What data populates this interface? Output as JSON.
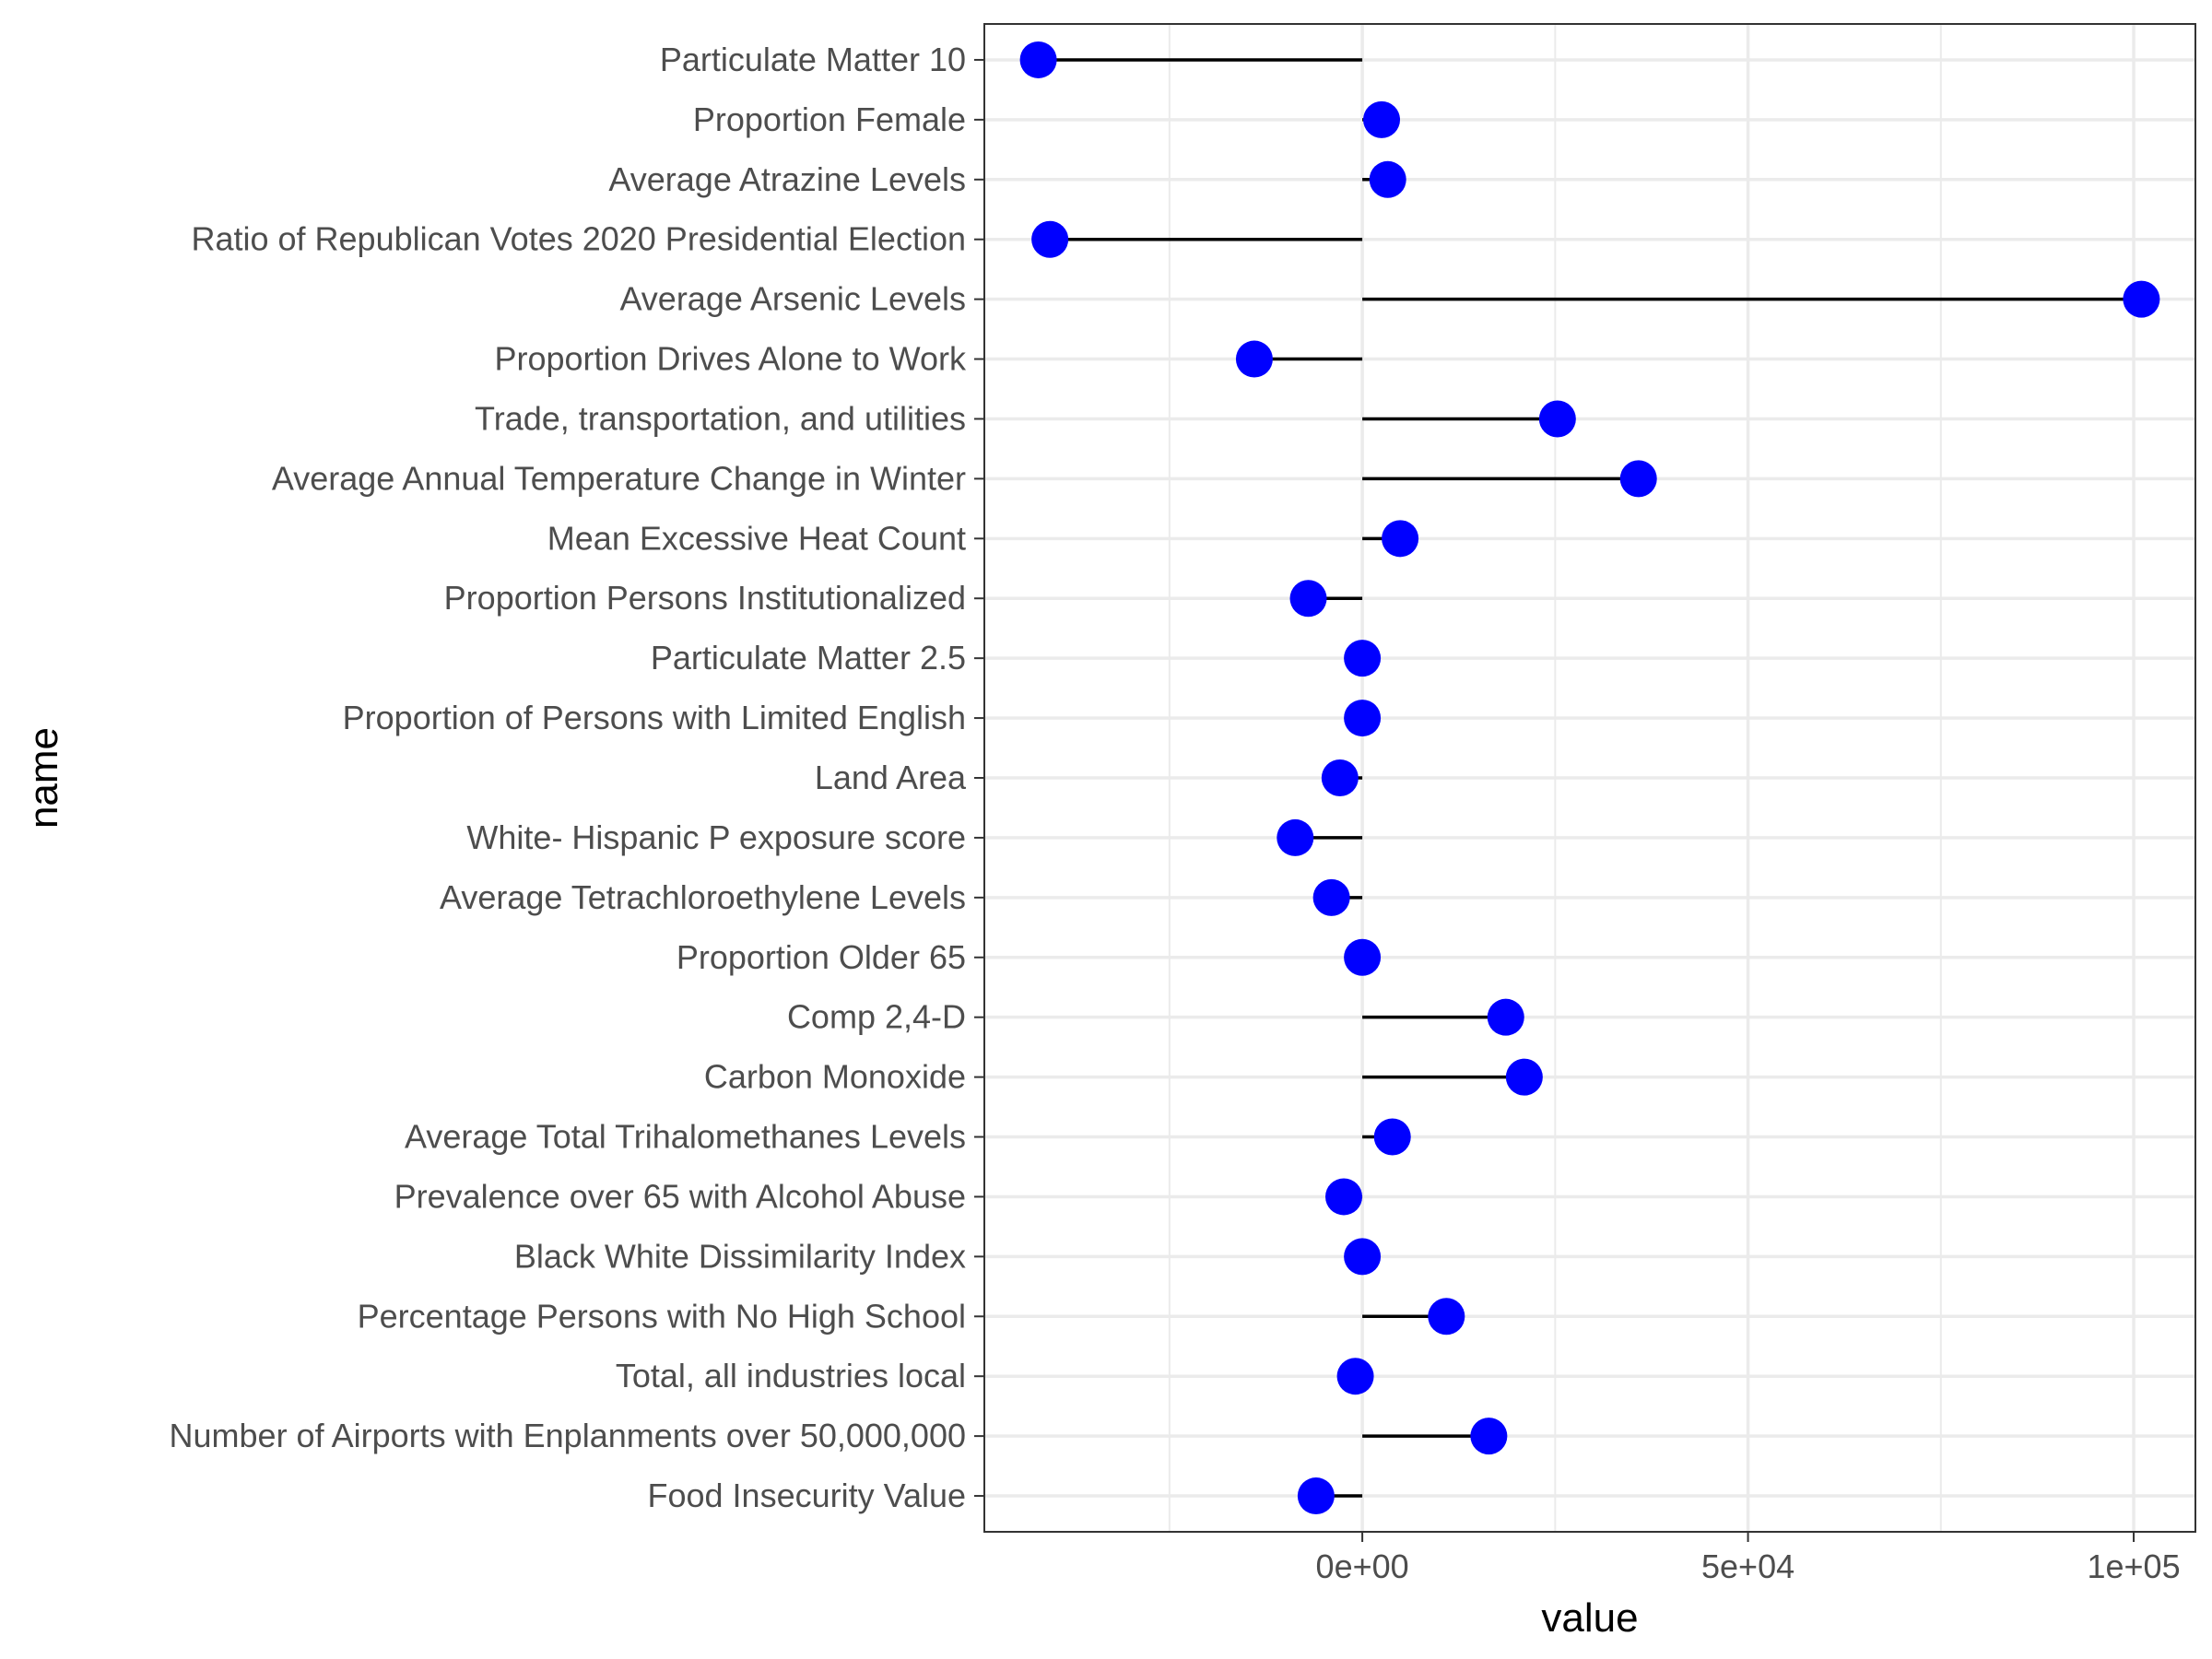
{
  "chart_data": {
    "type": "lollipop",
    "xlabel": "value",
    "ylabel": "name",
    "xlim": [
      -49000,
      108000
    ],
    "x_ticks": [
      {
        "value": 0,
        "label": "0e+00"
      },
      {
        "value": 50000,
        "label": "5e+04"
      },
      {
        "value": 100000,
        "label": "1e+05"
      }
    ],
    "x_minor_ticks": [
      -25000,
      25000,
      75000
    ],
    "grid": true,
    "baseline": 0,
    "categories": [
      "Particulate Matter 10",
      "Proportion Female",
      "Average Atrazine Levels",
      "Ratio of Republican Votes 2020 Presidential Election",
      "Average Arsenic Levels",
      "Proportion Drives Alone to Work",
      "Trade, transportation, and utilities",
      "Average Annual Temperature Change in Winter",
      "Mean Excessive Heat Count",
      "Proportion Persons Institutionalized",
      "Particulate Matter 2.5",
      "Proportion of Persons with Limited English",
      "Land Area",
      "White- Hispanic P exposure score",
      "Average Tetrachloroethylene Levels",
      "Proportion Older 65",
      "Comp 2,4-D",
      "Carbon Monoxide",
      "Average Total Trihalomethanes Levels",
      "Prevalence over 65 with Alcohol Abuse",
      "Black White Dissimilarity Index",
      "Percentage Persons with No High School",
      "Total, all industries local",
      "Number of Airports with Enplanments over 50,000,000",
      "Food Insecurity Value"
    ],
    "values": [
      -42000,
      2500,
      3300,
      -40500,
      101000,
      -14000,
      25300,
      35800,
      4900,
      -7000,
      0,
      0,
      -2900,
      -8700,
      -4000,
      0,
      18600,
      21000,
      3900,
      -2400,
      0,
      10900,
      -900,
      16400,
      -6000
    ],
    "colors": {
      "point": "#0000ff",
      "segment": "#000000",
      "grid": "#ebebeb",
      "panel_border": "#333333",
      "tick_text": "#4d4d4d"
    }
  }
}
